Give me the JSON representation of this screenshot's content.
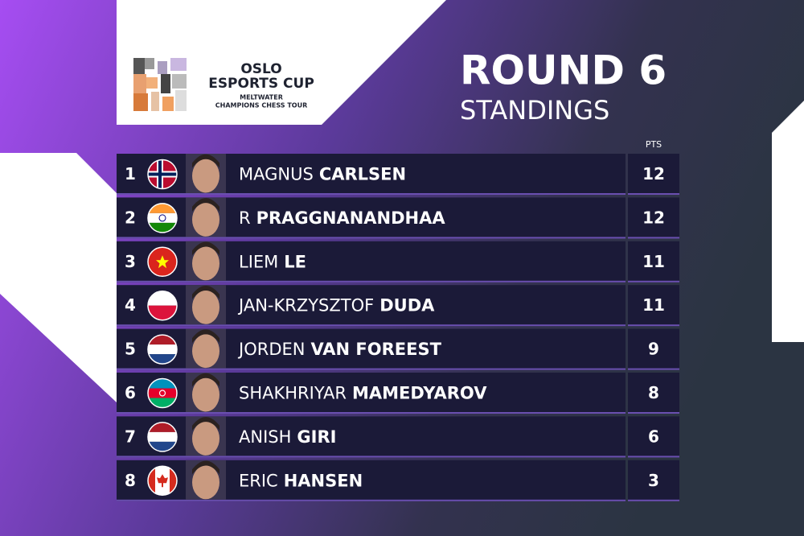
{
  "logo": {
    "line1": "OSLO",
    "line2": "ESPORTS CUP",
    "line3": "MELTWATER",
    "line4": "CHAMPIONS CHESS TOUR"
  },
  "header": {
    "title": "ROUND 6",
    "subtitle": "STANDINGS"
  },
  "table": {
    "points_header": "PTS",
    "rows": [
      {
        "rank": "1",
        "first": "MAGNUS",
        "last": "CARLSEN",
        "points": "12"
      },
      {
        "rank": "2",
        "first": "R",
        "last": "PRAGGNANANDHAA",
        "points": "12"
      },
      {
        "rank": "3",
        "first": "LIEM",
        "last": "LE",
        "points": "11"
      },
      {
        "rank": "4",
        "first": "JAN-KRZYSZTOF",
        "last": "DUDA",
        "points": "11"
      },
      {
        "rank": "5",
        "first": "JORDEN",
        "last": "VAN FOREEST",
        "points": "9"
      },
      {
        "rank": "6",
        "first": "SHAKHRIYAR",
        "last": "MAMEDYAROV",
        "points": "8"
      },
      {
        "rank": "7",
        "first": "ANISH",
        "last": "GIRI",
        "points": "6"
      },
      {
        "rank": "8",
        "first": "ERIC",
        "last": "HANSEN",
        "points": "3"
      }
    ]
  }
}
